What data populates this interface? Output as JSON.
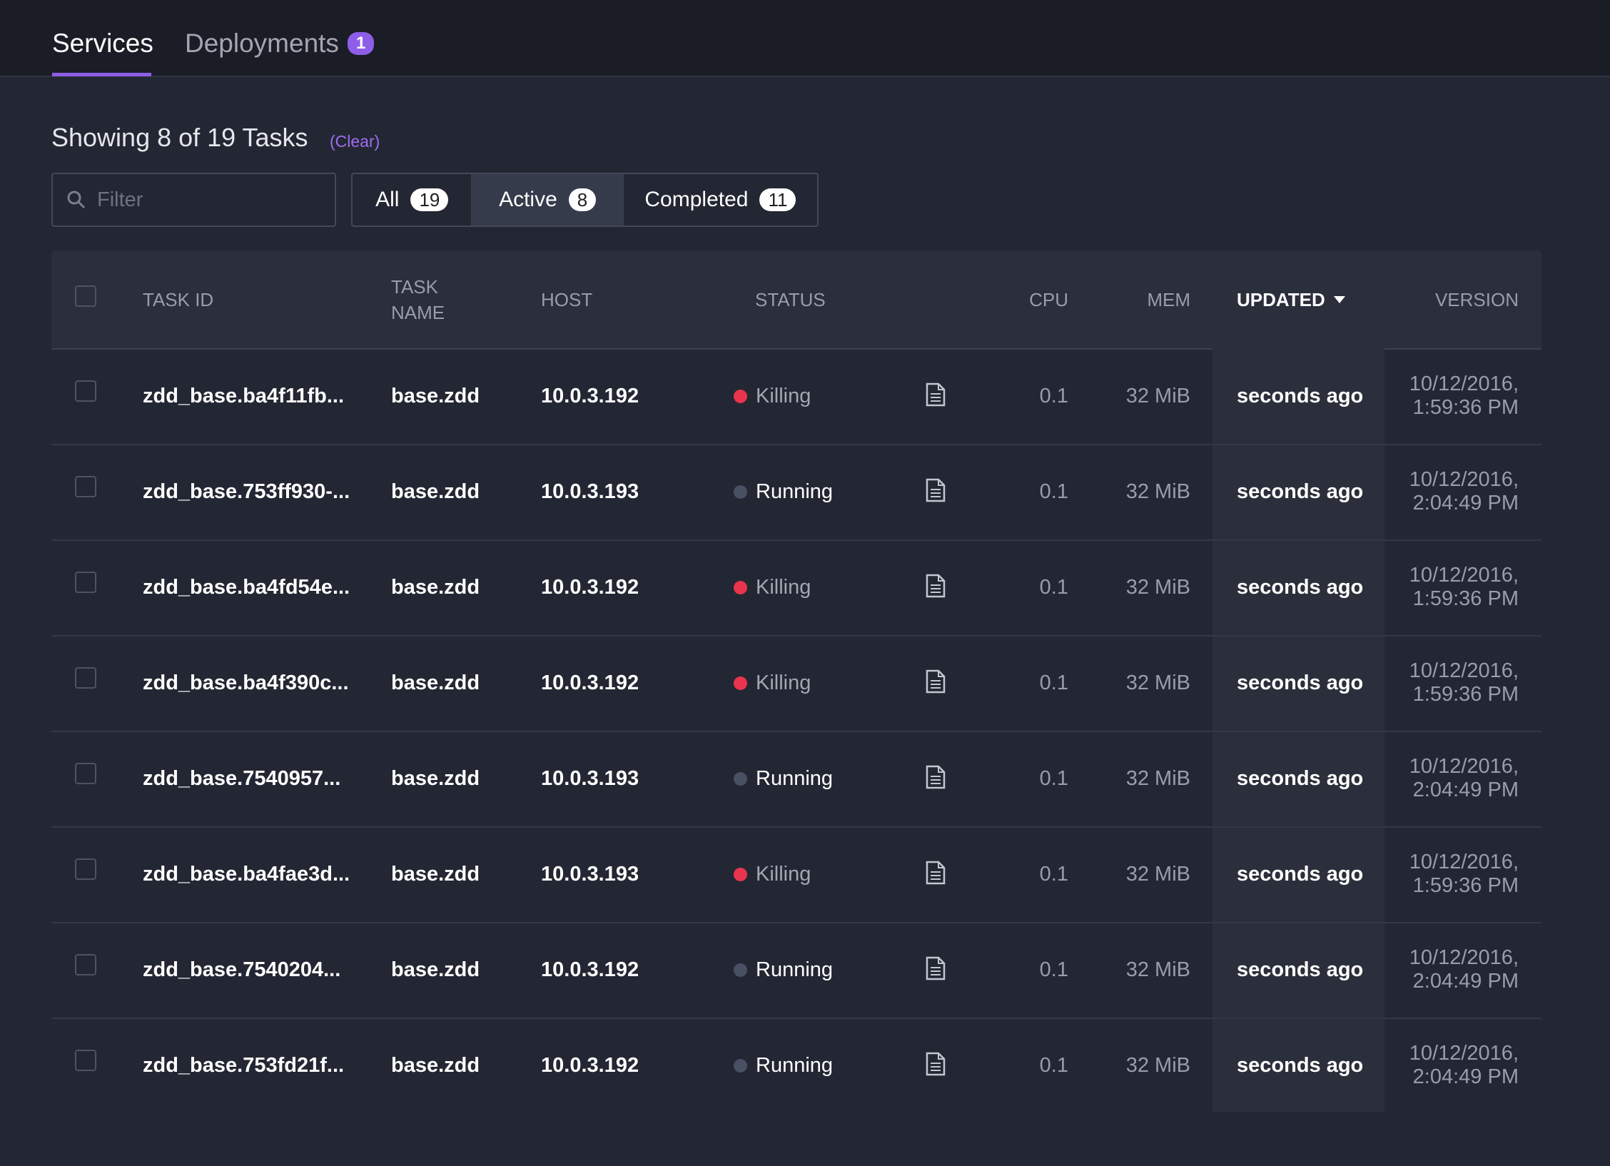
{
  "tabs": [
    {
      "label": "Services"
    },
    {
      "label": "Deployments",
      "badge": "1"
    }
  ],
  "heading": "Showing 8 of 19 Tasks",
  "clear": "(Clear)",
  "filter": {
    "placeholder": "Filter"
  },
  "filter_buttons": [
    {
      "label": "All",
      "count": "19"
    },
    {
      "label": "Active",
      "count": "8"
    },
    {
      "label": "Completed",
      "count": "11"
    }
  ],
  "table": {
    "columns": [
      "TASK ID",
      "TASK NAME",
      "HOST",
      "STATUS",
      "CPU",
      "MEM",
      "UPDATED",
      "VERSION"
    ],
    "status_styles": {
      "Killing": {
        "dot": "#e8344d",
        "text": "#a4a6b2"
      },
      "Running": {
        "dot": "#4a5064",
        "text": "#ffffff"
      }
    },
    "rows": [
      {
        "task_id": "zdd_base.ba4f11fb...",
        "task_name": "base.zdd",
        "host": "10.0.3.192",
        "status": "Killing",
        "cpu": 0.1,
        "mem": "32 MiB",
        "updated": "seconds ago",
        "version": "10/12/2016, 1:59:36 PM"
      },
      {
        "task_id": "zdd_base.753ff930-...",
        "task_name": "base.zdd",
        "host": "10.0.3.193",
        "status": "Running",
        "cpu": 0.1,
        "mem": "32 MiB",
        "updated": "seconds ago",
        "version": "10/12/2016, 2:04:49 PM"
      },
      {
        "task_id": "zdd_base.ba4fd54e...",
        "task_name": "base.zdd",
        "host": "10.0.3.192",
        "status": "Killing",
        "cpu": 0.1,
        "mem": "32 MiB",
        "updated": "seconds ago",
        "version": "10/12/2016, 1:59:36 PM"
      },
      {
        "task_id": "zdd_base.ba4f390c...",
        "task_name": "base.zdd",
        "host": "10.0.3.192",
        "status": "Killing",
        "cpu": 0.1,
        "mem": "32 MiB",
        "updated": "seconds ago",
        "version": "10/12/2016, 1:59:36 PM"
      },
      {
        "task_id": "zdd_base.7540957...",
        "task_name": "base.zdd",
        "host": "10.0.3.193",
        "status": "Running",
        "cpu": 0.1,
        "mem": "32 MiB",
        "updated": "seconds ago",
        "version": "10/12/2016, 2:04:49 PM"
      },
      {
        "task_id": "zdd_base.ba4fae3d...",
        "task_name": "base.zdd",
        "host": "10.0.3.193",
        "status": "Killing",
        "cpu": 0.1,
        "mem": "32 MiB",
        "updated": "seconds ago",
        "version": "10/12/2016, 1:59:36 PM"
      },
      {
        "task_id": "zdd_base.7540204...",
        "task_name": "base.zdd",
        "host": "10.0.3.192",
        "status": "Running",
        "cpu": 0.1,
        "mem": "32 MiB",
        "updated": "seconds ago",
        "version": "10/12/2016, 2:04:49 PM"
      },
      {
        "task_id": "zdd_base.753fd21f...",
        "task_name": "base.zdd",
        "host": "10.0.3.192",
        "status": "Running",
        "cpu": 0.1,
        "mem": "32 MiB",
        "updated": "seconds ago",
        "version": "10/12/2016, 2:04:49 PM"
      }
    ]
  }
}
